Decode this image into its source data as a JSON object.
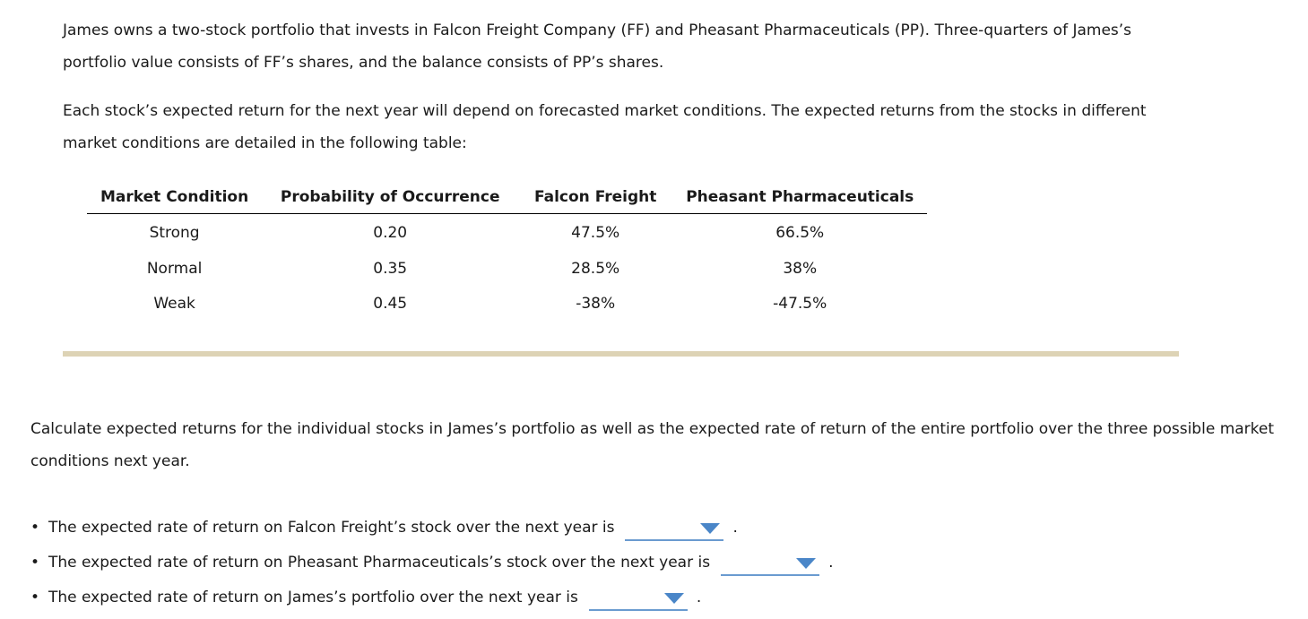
{
  "intro": {
    "paragraph1": "James owns a two-stock portfolio that invests in Falcon Freight Company (FF) and Pheasant Pharmaceuticals (PP). Three-quarters of James’s portfolio value consists of FF’s shares, and the balance consists of PP’s shares.",
    "paragraph2": "Each stock’s expected return for the next year will depend on forecasted market conditions. The expected returns from the stocks in different market conditions are detailed in the following table:"
  },
  "table": {
    "headers": [
      "Market Condition",
      "Probability of Occurrence",
      "Falcon Freight",
      "Pheasant Pharmaceuticals"
    ],
    "rows": [
      [
        "Strong",
        "0.20",
        "47.5%",
        "66.5%"
      ],
      [
        "Normal",
        "0.35",
        "28.5%",
        "38%"
      ],
      [
        "Weak",
        "0.45",
        "-38%",
        "-47.5%"
      ]
    ]
  },
  "instructions": "Calculate expected returns for the individual stocks in James’s portfolio as well as the expected rate of return of the entire portfolio over the three possible market conditions next year.",
  "questions": [
    {
      "bullet": "•",
      "text": "The expected rate of return on Falcon Freight’s stock over the next year is",
      "selected": "",
      "end": "."
    },
    {
      "bullet": "•",
      "text": "The expected rate of return on Pheasant Pharmaceuticals’s stock over the next year is",
      "selected": "",
      "end": "."
    },
    {
      "bullet": "•",
      "text": "The expected rate of return on James’s portfolio over the next year is",
      "selected": "",
      "end": "."
    }
  ],
  "colors": {
    "divider": "#ddd3b5",
    "dropdown_underline": "#6a9bd0",
    "dropdown_caret": "#4a86c8"
  }
}
